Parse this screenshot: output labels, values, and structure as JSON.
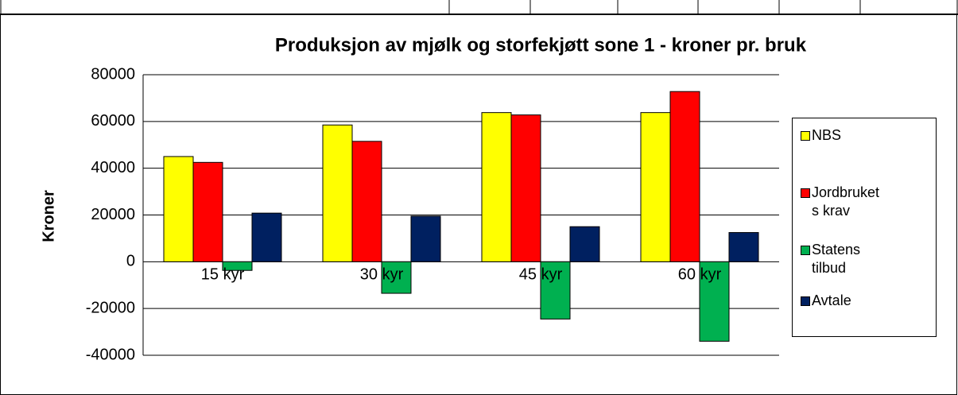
{
  "chart_data": {
    "type": "bar",
    "title": "Produksjon av mjølk og storfekjøtt sone 1 - kroner pr. bruk",
    "y_label": "Kroner",
    "categories": [
      "15 kyr",
      "30 kyr",
      "45 kyr",
      "60 kyr"
    ],
    "series": [
      {
        "name": "NBS",
        "color": "#ffff00",
        "values": [
          45000,
          58500,
          63800,
          63800
        ]
      },
      {
        "name": "Jordbrukets krav",
        "color": "#ff0000",
        "values": [
          42500,
          51500,
          62800,
          72800
        ]
      },
      {
        "name": "Statens tilbud",
        "color": "#00b050",
        "values": [
          -3700,
          -13500,
          -24500,
          -34000
        ]
      },
      {
        "name": "Avtale",
        "color": "#002060",
        "values": [
          20800,
          19500,
          15000,
          12500
        ]
      }
    ],
    "ylim": [
      -40000,
      80000
    ],
    "yticks": [
      -40000,
      -20000,
      0,
      20000,
      40000,
      60000,
      80000
    ],
    "grid": true,
    "legend": "right"
  }
}
